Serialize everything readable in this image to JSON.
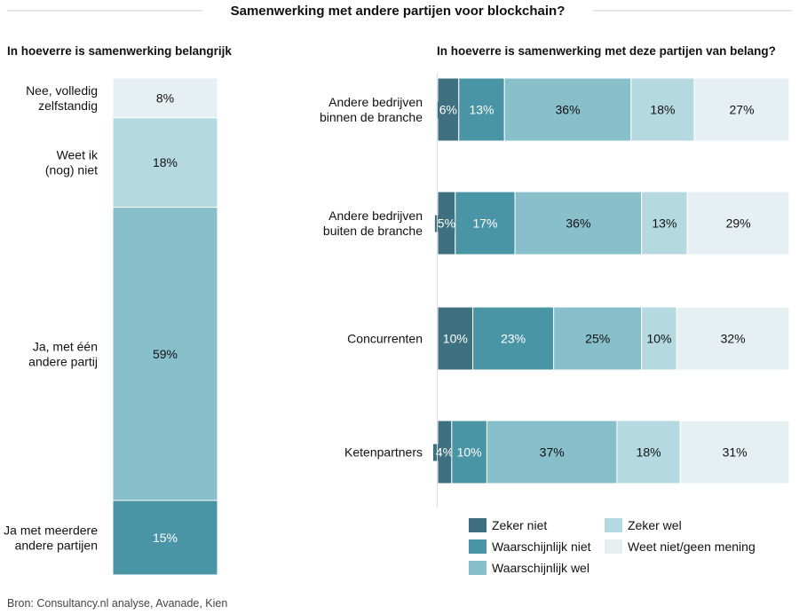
{
  "title": "Samenwerking met andere partijen voor blockchain?",
  "source": "Bron: Consultancy.nl analyse, Avanade, Kien",
  "colors": {
    "zeker_niet": "#3f7082",
    "waarschijnlijk_niet": "#4a95a5",
    "waarschijnlijk_wel": "#87bfca",
    "zeker_wel": "#b5d9e0",
    "weet_niet": "#e6f0f2"
  },
  "chart_data": [
    {
      "type": "bar",
      "stacked": true,
      "orientation": "vertical",
      "title": "In hoeverre is samenwerking belangrijk",
      "categories": [
        "Nee, volledig zelfstandig",
        "Weet ik (nog) niet",
        "Ja, met één andere partij",
        "Ja met meerdere andere partijen"
      ],
      "values": [
        8,
        18,
        59,
        15
      ],
      "labels": [
        "8%",
        "18%",
        "59%",
        "15%"
      ],
      "segment_colors": [
        "#e6f0f2",
        "#b5d9e0",
        "#87bfca",
        "#4a95a5"
      ],
      "category_lines": [
        [
          "Nee, volledig",
          "zelfstandig"
        ],
        [
          "Weet ik",
          "(nog) niet"
        ],
        [
          "Ja, met één",
          "andere partij"
        ],
        [
          "Ja met meerdere",
          "andere partijen"
        ]
      ]
    },
    {
      "type": "bar",
      "stacked": true,
      "orientation": "horizontal",
      "title": "In hoeverre is samenwerking met deze partijen van belang?",
      "categories": [
        "Andere bedrijven binnen de branche",
        "Andere bedrijven buiten de branche",
        "Concurrenten",
        "Ketenpartners"
      ],
      "category_lines": [
        [
          "Andere bedrijven",
          "binnen de branche"
        ],
        [
          "Andere bedrijven",
          "buiten de branche"
        ],
        [
          "Concurrenten"
        ],
        [
          "Ketenpartners"
        ]
      ],
      "series": [
        {
          "name": "Zeker niet",
          "values": [
            6,
            5,
            10,
            4
          ],
          "color": "#3f7082"
        },
        {
          "name": "Waarschijnlijk niet",
          "values": [
            13,
            17,
            23,
            10
          ],
          "color": "#4a95a5"
        },
        {
          "name": "Waarschijnlijk wel",
          "values": [
            36,
            36,
            25,
            37
          ],
          "color": "#87bfca"
        },
        {
          "name": "Zeker wel",
          "values": [
            18,
            13,
            10,
            18
          ],
          "color": "#b5d9e0"
        },
        {
          "name": "Weet niet/geen mening",
          "values": [
            27,
            29,
            32,
            31
          ],
          "color": "#e6f0f2"
        }
      ],
      "legend_placement": "bottom",
      "grid": false
    }
  ]
}
